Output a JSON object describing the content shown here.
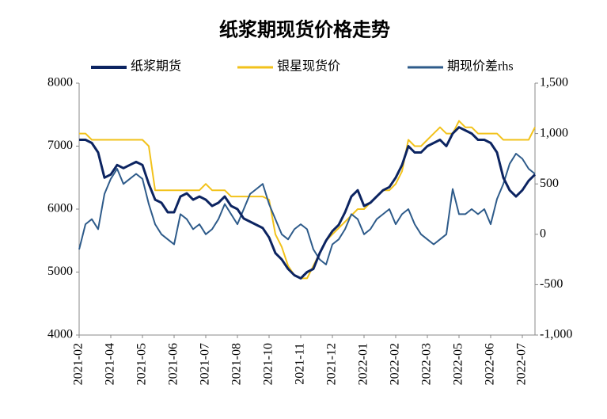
{
  "chart_data": {
    "type": "line",
    "title": "纸浆期现货价格走势",
    "categories": [
      "2021-02",
      null,
      null,
      null,
      null,
      "2021-04",
      null,
      null,
      null,
      null,
      "2021-05",
      null,
      null,
      null,
      null,
      "2021-06",
      null,
      null,
      null,
      null,
      "2021-07",
      null,
      null,
      null,
      null,
      "2021-08",
      null,
      null,
      null,
      null,
      "2021-10",
      null,
      null,
      null,
      null,
      "2021-11",
      null,
      null,
      null,
      null,
      "2021-12",
      null,
      null,
      null,
      null,
      "2022-01",
      null,
      null,
      null,
      null,
      "2022-02",
      null,
      null,
      null,
      null,
      "2022-03",
      null,
      null,
      null,
      null,
      "2022-05",
      null,
      null,
      null,
      null,
      "2022-06",
      null,
      null,
      null,
      null,
      "2022-07",
      null,
      null
    ],
    "series": [
      {
        "name": "纸浆期货",
        "color": "#0c2461",
        "values": [
          7100,
          7100,
          7050,
          6900,
          6500,
          6550,
          6700,
          6650,
          6700,
          6750,
          6700,
          6400,
          6150,
          6100,
          5950,
          5950,
          6200,
          6250,
          6150,
          6200,
          6150,
          6050,
          6100,
          6200,
          6050,
          6000,
          5850,
          5800,
          5750,
          5700,
          5550,
          5300,
          5200,
          5050,
          4950,
          4900,
          5000,
          5050,
          5300,
          5500,
          5650,
          5750,
          5950,
          6200,
          6300,
          6050,
          6100,
          6200,
          6300,
          6350,
          6500,
          6700,
          7000,
          6900,
          6900,
          7000,
          7050,
          7100,
          7000,
          7200,
          7300,
          7250,
          7200,
          7100,
          7100,
          7050,
          6900,
          6500,
          6300,
          6200,
          6300,
          6450,
          6550
        ]
      },
      {
        "name": "银星现货价",
        "color": "#f2c21b",
        "values": [
          7200,
          7200,
          7100,
          7100,
          7100,
          7100,
          7100,
          7100,
          7100,
          7100,
          7100,
          7000,
          6300,
          6300,
          6300,
          6300,
          6300,
          6300,
          6300,
          6300,
          6400,
          6300,
          6300,
          6300,
          6200,
          6200,
          6200,
          6200,
          6200,
          6200,
          6150,
          5600,
          5400,
          5100,
          4950,
          4900,
          4900,
          5100,
          5300,
          5500,
          5600,
          5700,
          5800,
          5900,
          6000,
          6000,
          6100,
          6200,
          6300,
          6300,
          6400,
          6600,
          7100,
          7000,
          7000,
          7100,
          7200,
          7300,
          7200,
          7200,
          7400,
          7300,
          7300,
          7200,
          7200,
          7200,
          7200,
          7100,
          7100,
          7100,
          7100,
          7100,
          7300
        ]
      },
      {
        "name": "期现价差rhs",
        "color": "#2e5b8a",
        "axis": "y2",
        "values": [
          -150,
          100,
          150,
          50,
          400,
          550,
          650,
          500,
          550,
          600,
          550,
          300,
          100,
          0,
          -50,
          -100,
          200,
          150,
          50,
          100,
          0,
          50,
          150,
          300,
          200,
          100,
          250,
          400,
          450,
          500,
          300,
          150,
          0,
          -50,
          50,
          100,
          50,
          -150,
          -250,
          -300,
          -100,
          -50,
          50,
          200,
          150,
          0,
          50,
          150,
          200,
          250,
          100,
          200,
          250,
          100,
          0,
          -50,
          -100,
          -50,
          0,
          450,
          200,
          200,
          250,
          200,
          250,
          100,
          350,
          500,
          700,
          800,
          750,
          650,
          600
        ]
      }
    ],
    "ylim": [
      4000,
      8000
    ],
    "yticks": [
      4000,
      5000,
      6000,
      7000,
      8000
    ],
    "y2lim": [
      -1000,
      1500
    ],
    "y2ticks": [
      {
        "value": -1000,
        "label": "-1,000"
      },
      -500,
      0,
      500,
      {
        "value": 1000,
        "label": "1,000"
      },
      {
        "value": 1500,
        "label": "1,500"
      }
    ],
    "y2_negative_tick_color": "#e00000",
    "legend": "top",
    "grid": false
  }
}
